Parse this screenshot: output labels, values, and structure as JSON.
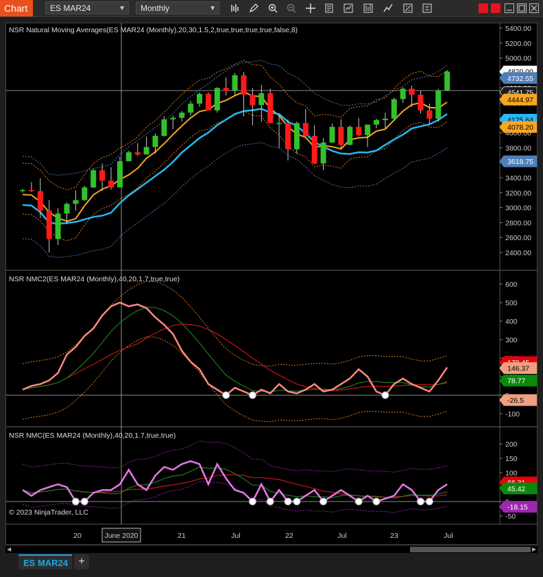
{
  "toolbar": {
    "chart_label": "Chart",
    "instrument": "ES MAR24",
    "interval": "Monthly",
    "icons": [
      "bar-chart-icon",
      "pencil-icon",
      "zoom-in-icon",
      "zoom-out-icon",
      "crosshair-icon",
      "properties-icon",
      "indicators-icon",
      "strategies-icon",
      "drawing-tools-icon",
      "data-box-icon",
      "chart-trader-icon"
    ]
  },
  "panels": {
    "price": {
      "title": "NSR Natural Moving Averages(ES MAR24 (Monthly),20,30,1.5,2,true,true,true,true,false,8)",
      "y_ticks": [
        "5400.00",
        "5200.00",
        "5000.00",
        "4800.00",
        "4600.00",
        "4400.00",
        "4200.00",
        "4000.00",
        "3800.00",
        "3600.00",
        "3400.00",
        "3200.00",
        "3000.00",
        "2800.00",
        "2600.00",
        "2400.00"
      ],
      "badges": [
        {
          "text": "4820.00",
          "color": "#ffffff",
          "fg": "#000000"
        },
        {
          "text": "4732.55",
          "color": "#4f7fb8",
          "fg": "#ffffff"
        },
        {
          "text": "4541.75",
          "color": "#1a1a1a",
          "fg": "#ffffff"
        },
        {
          "text": "4444.97",
          "color": "#f5a623",
          "fg": "#000000"
        },
        {
          "text": "4175.64",
          "color": "#29b6f6",
          "fg": "#000000"
        },
        {
          "text": "4078.20",
          "color": "#f5a623",
          "fg": "#000000"
        },
        {
          "text": "3618.75",
          "color": "#4f7fb8",
          "fg": "#ffffff"
        }
      ]
    },
    "nmc2": {
      "title": "NSR NMC2(ES MAR24 (Monthly),40,20,1.7,true,true)",
      "y_ticks": [
        "600",
        "500",
        "400",
        "300",
        "200",
        "100",
        "0",
        "-100"
      ],
      "badges": [
        {
          "text": "178.45",
          "color": "#e8000b",
          "fg": "#ffffff"
        },
        {
          "text": "146.37",
          "color": "#f0a080",
          "fg": "#000000"
        },
        {
          "text": "78.77",
          "color": "#0a8a0a",
          "fg": "#ffffff"
        },
        {
          "text": "-26.5",
          "color": "#f0a080",
          "fg": "#000000"
        }
      ]
    },
    "nmc": {
      "title": "NSR NMC(ES MAR24 (Monthly),40,20,1.7,true,true)",
      "y_ticks": [
        "200",
        "150",
        "100",
        "50",
        "0",
        "-50"
      ],
      "badges": [
        {
          "text": "66.31",
          "color": "#e8000b",
          "fg": "#ffffff"
        },
        {
          "text": "45.42",
          "color": "#0a8a0a",
          "fg": "#ffffff"
        },
        {
          "text": "-18.15",
          "color": "#9c27b0",
          "fg": "#ffffff"
        }
      ]
    }
  },
  "x_axis": {
    "labels": [
      "20",
      "June 2020",
      "21",
      "Jul",
      "22",
      "Jul",
      "23",
      "Jul"
    ],
    "highlight": "June 2020"
  },
  "copyright": "© 2023 NinjaTrader, LLC",
  "tabs": {
    "active": "ES MAR24",
    "add_label": "+"
  },
  "chart_data": {
    "type": "candlestick",
    "x": [
      "2019-12",
      "2020-01",
      "2020-02",
      "2020-03",
      "2020-04",
      "2020-05",
      "2020-06",
      "2020-07",
      "2020-08",
      "2020-09",
      "2020-10",
      "2020-11",
      "2020-12",
      "2021-01",
      "2021-02",
      "2021-03",
      "2021-04",
      "2021-05",
      "2021-06",
      "2021-07",
      "2021-08",
      "2021-09",
      "2021-10",
      "2021-11",
      "2021-12",
      "2022-01",
      "2022-02",
      "2022-03",
      "2022-04",
      "2022-05",
      "2022-06",
      "2022-07",
      "2022-08",
      "2022-09",
      "2022-10",
      "2022-11",
      "2022-12",
      "2023-01",
      "2023-02",
      "2023-03",
      "2023-04",
      "2023-05",
      "2023-06",
      "2023-07",
      "2023-08",
      "2023-09",
      "2023-10",
      "2023-11",
      "2023-12"
    ],
    "ohlc": [
      [
        3230,
        3250,
        3200,
        3235
      ],
      [
        3235,
        3340,
        3210,
        3220
      ],
      [
        3220,
        3390,
        2860,
        2960
      ],
      [
        2960,
        3100,
        2400,
        2580
      ],
      [
        2580,
        2990,
        2500,
        2920
      ],
      [
        2920,
        3070,
        2780,
        3050
      ],
      [
        3050,
        3230,
        2960,
        3100
      ],
      [
        3100,
        3290,
        3090,
        3270
      ],
      [
        3270,
        3520,
        3260,
        3500
      ],
      [
        3500,
        3590,
        3220,
        3360
      ],
      [
        3360,
        3540,
        3240,
        3270
      ],
      [
        3270,
        3680,
        3280,
        3620
      ],
      [
        3620,
        3760,
        3620,
        3740
      ],
      [
        3740,
        3860,
        3690,
        3710
      ],
      [
        3710,
        3950,
        3720,
        3810
      ],
      [
        3810,
        3990,
        3720,
        3960
      ],
      [
        3960,
        4220,
        3950,
        4180
      ],
      [
        4180,
        4230,
        4050,
        4200
      ],
      [
        4200,
        4290,
        4150,
        4270
      ],
      [
        4270,
        4430,
        4230,
        4390
      ],
      [
        4390,
        4540,
        4350,
        4520
      ],
      [
        4520,
        4540,
        4300,
        4300
      ],
      [
        4300,
        4610,
        4270,
        4600
      ],
      [
        4600,
        4740,
        4500,
        4560
      ],
      [
        4560,
        4800,
        4500,
        4770
      ],
      [
        4770,
        4810,
        4220,
        4510
      ],
      [
        4510,
        4600,
        4100,
        4370
      ],
      [
        4370,
        4640,
        4150,
        4530
      ],
      [
        4530,
        4590,
        4130,
        4130
      ],
      [
        4130,
        4230,
        3800,
        4130
      ],
      [
        4130,
        4180,
        3630,
        3780
      ],
      [
        3780,
        4150,
        3720,
        4130
      ],
      [
        4130,
        4320,
        3950,
        3960
      ],
      [
        3960,
        4100,
        3580,
        3590
      ],
      [
        3590,
        3930,
        3500,
        3870
      ],
      [
        3870,
        4120,
        3880,
        4080
      ],
      [
        4080,
        4180,
        3790,
        3840
      ],
      [
        3840,
        4100,
        3830,
        4080
      ],
      [
        4080,
        4200,
        3950,
        3970
      ],
      [
        3970,
        4100,
        3810,
        4110
      ],
      [
        4110,
        4190,
        4060,
        4170
      ],
      [
        4170,
        4270,
        4060,
        4190
      ],
      [
        4190,
        4470,
        4180,
        4450
      ],
      [
        4450,
        4610,
        4400,
        4590
      ],
      [
        4590,
        4630,
        4350,
        4510
      ],
      [
        4510,
        4560,
        4260,
        4300
      ],
      [
        4300,
        4390,
        4120,
        4190
      ],
      [
        4190,
        4590,
        4150,
        4570
      ],
      [
        4570,
        4840,
        4560,
        4820
      ]
    ],
    "ylim": [
      2300,
      5450
    ]
  },
  "colors": {
    "up": "#32c12c",
    "down": "#ff1a1a",
    "mid": "#f5a623",
    "fast": "#29b6f6",
    "band": "#4f7fb8",
    "osc": "#ff8a80",
    "nmc": "#e478e8",
    "green": "#1f7a1f",
    "red": "#c81414"
  }
}
